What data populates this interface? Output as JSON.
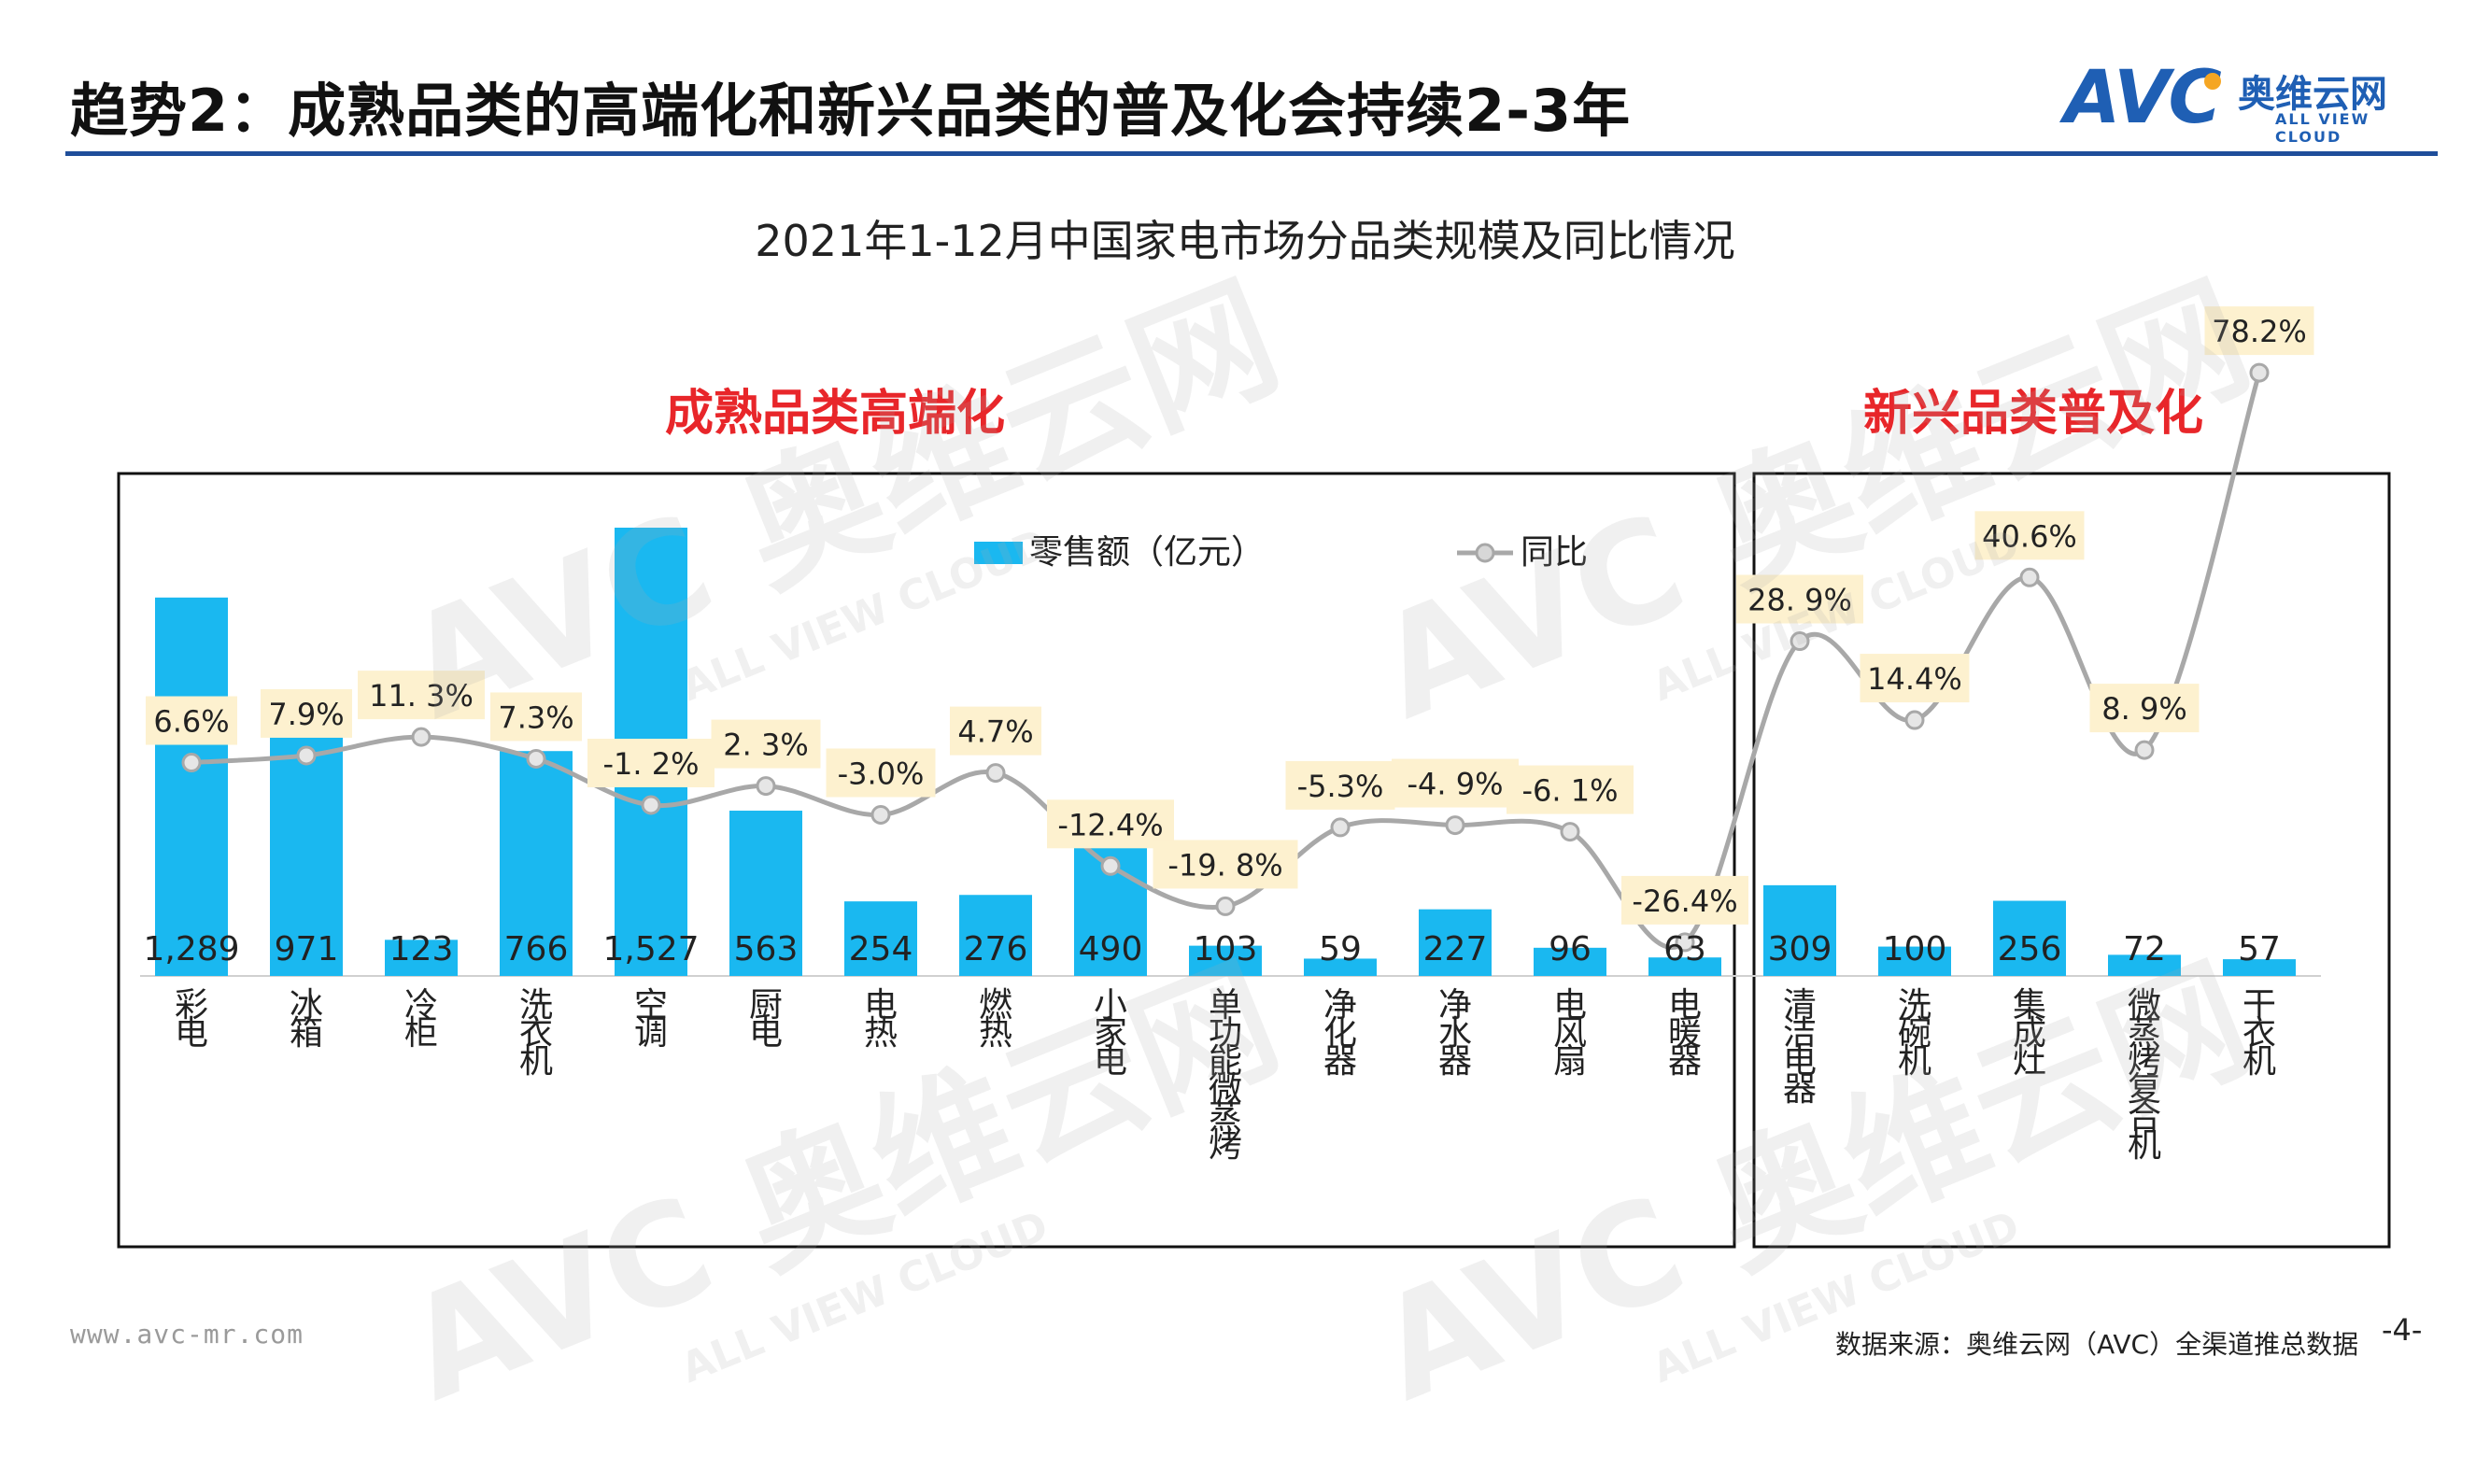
{
  "page": {
    "title": "趋势2：成熟品类的高端化和新兴品类的普及化会持续2-3年",
    "logo_main": "AVC",
    "logo_cn": "奥维云网",
    "logo_en": "ALL VIEW CLOUD",
    "footer_url": "www.avc-mr.com",
    "footer_source": "数据来源：奥维云网（AVC）全渠道推总数据",
    "page_number": "-4-",
    "watermark_en": "ALL VIEW CLOUD"
  },
  "colors": {
    "bar": "#1ab8f0",
    "line": "#a8a8a8",
    "label_box": "#fdf1cf",
    "group_label": "#e8262a",
    "title_rule": "#1f4e9a"
  },
  "chart_data": {
    "type": "bar",
    "title": "2021年1-12月中国家电市场分品类规模及同比情况",
    "legend": {
      "bar_name": "零售额（亿元）",
      "line_name": "同比",
      "placement": "top-center"
    },
    "groups": [
      {
        "label": "成熟品类高端化",
        "range": [
          0,
          13
        ]
      },
      {
        "label": "新兴品类普及化",
        "range": [
          14,
          18
        ]
      }
    ],
    "categories": [
      "彩电",
      "冰箱",
      "冷柜",
      "洗衣机",
      "空调",
      "厨电",
      "电热",
      "燃热",
      "小家电",
      "单功能微蒸烤",
      "净化器",
      "净水器",
      "电风扇",
      "电暖器",
      "清洁电器",
      "洗碗机",
      "集成灶",
      "微蒸烤复合机",
      "干衣机"
    ],
    "series": [
      {
        "name": "零售额（亿元）",
        "kind": "bar",
        "values": [
          1289,
          971,
          123,
          766,
          1527,
          563,
          254,
          276,
          490,
          103,
          59,
          227,
          96,
          63,
          309,
          100,
          256,
          72,
          57
        ],
        "labels": [
          "1,289",
          "971",
          "123",
          "766",
          "1,527",
          "563",
          "254",
          "276",
          "490",
          "103",
          "59",
          "227",
          "96",
          "63",
          "309",
          "100",
          "256",
          "72",
          "57"
        ]
      },
      {
        "name": "同比",
        "kind": "line",
        "values": [
          6.6,
          7.9,
          11.3,
          7.3,
          -1.2,
          2.3,
          -3.0,
          4.7,
          -12.4,
          -19.8,
          -5.3,
          -4.9,
          -6.1,
          -26.4,
          28.9,
          14.4,
          40.6,
          8.9,
          78.2
        ],
        "labels": [
          "6.6%",
          "7.9%",
          "11. 3%",
          "7.3%",
          "-1. 2%",
          "2. 3%",
          "-3.0%",
          "4.7%",
          "-12.4%",
          "-19. 8%",
          "-5.3%",
          "-4. 9%",
          "-6. 1%",
          "-26.4%",
          "28. 9%",
          "14.4%",
          "40.6%",
          "8. 9%",
          "78.2%"
        ]
      }
    ],
    "ylim_bar": [
      0,
      1800
    ],
    "ylim_line": [
      -40,
      90
    ],
    "grid": false
  }
}
